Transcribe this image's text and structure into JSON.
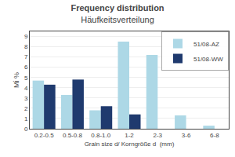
{
  "chart_data": {
    "type": "bar",
    "title": "Frequency distribution",
    "subtitle": "Häufkeitsverteilung",
    "x_label": "Grain size d/ Korngröße d  (mm)",
    "y_label": "Mi %",
    "categories": [
      "0.2-0.5",
      "0.5-0.8",
      "0.8-1.0",
      "1-2",
      "2-3",
      "3-6",
      "6-8"
    ],
    "series": [
      {
        "name": "51/08-AZ",
        "color": "#add8e6",
        "values": [
          4.7,
          3.3,
          1.8,
          8.5,
          7.2,
          1.3,
          0.3
        ]
      },
      {
        "name": "51/08-WW",
        "color": "#1f3a6e",
        "values": [
          4.3,
          4.8,
          2.2,
          1.4,
          0.0,
          0.0,
          0.0
        ]
      }
    ],
    "ylim": [
      0,
      9.5
    ],
    "yticks": [
      0,
      1,
      2,
      3,
      4,
      5,
      6,
      7,
      8,
      9
    ],
    "grid": true,
    "legend": "upper right"
  }
}
